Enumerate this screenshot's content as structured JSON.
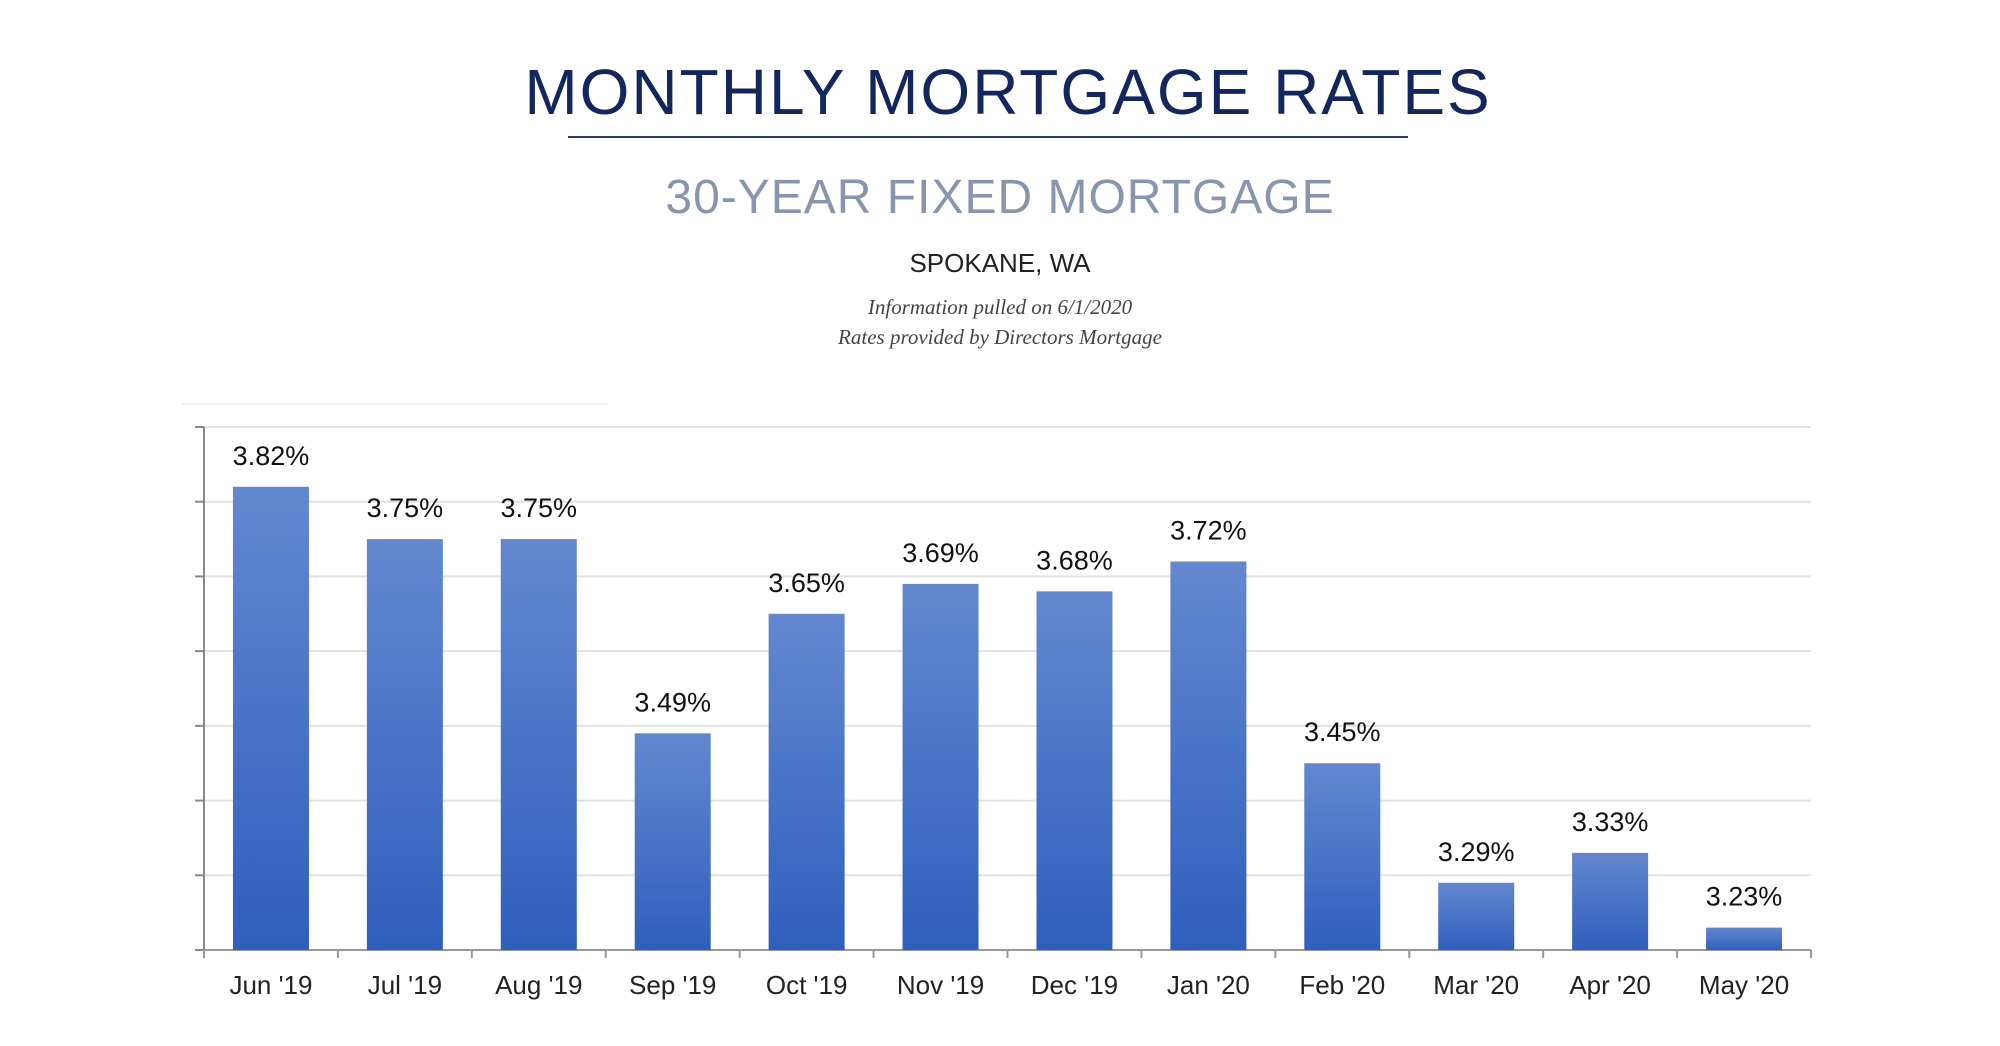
{
  "header": {
    "title": "MONTHLY MORTGAGE RATES",
    "subtitle": "30-YEAR FIXED MORTGAGE",
    "location": "SPOKANE, WA",
    "info_line_1": "Information pulled on 6/1/2020",
    "info_line_2": "Rates provided by Directors Mortgage"
  },
  "colors": {
    "title": "#13275e",
    "subtitle": "#8795ae",
    "bar_top": "#6388cf",
    "bar_bottom": "#2f5fbd"
  },
  "chart_data": {
    "type": "bar",
    "categories": [
      "Jun '19",
      "Jul '19",
      "Aug '19",
      "Sep '19",
      "Oct '19",
      "Nov '19",
      "Dec '19",
      "Jan '20",
      "Feb '20",
      "Mar '20",
      "Apr '20",
      "May '20"
    ],
    "values": [
      3.82,
      3.75,
      3.75,
      3.49,
      3.65,
      3.69,
      3.68,
      3.72,
      3.45,
      3.29,
      3.33,
      3.23
    ],
    "data_labels": [
      "3.82%",
      "3.75%",
      "3.75%",
      "3.49%",
      "3.65%",
      "3.69%",
      "3.68%",
      "3.72%",
      "3.45%",
      "3.29%",
      "3.33%",
      "3.23%"
    ],
    "title": "MONTHLY MORTGAGE RATES",
    "subtitle": "30-YEAR FIXED MORTGAGE",
    "xlabel": "",
    "ylabel": "",
    "ylim": [
      3.2,
      3.9
    ],
    "ytick_step": 0.1,
    "ytick_labels_shown": false,
    "grid": true
  }
}
